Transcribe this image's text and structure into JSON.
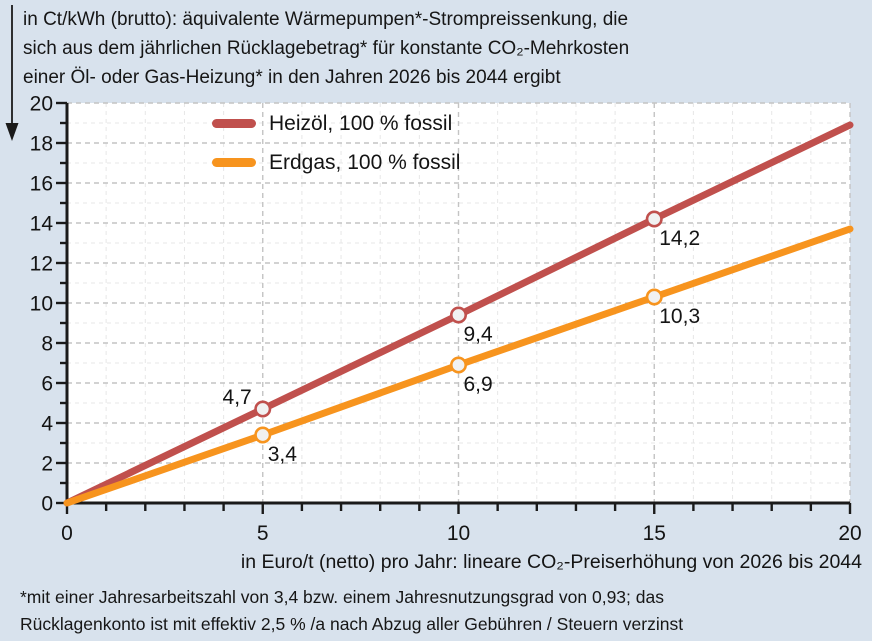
{
  "heading": {
    "lines": [
      "in Ct/kWh (brutto): äquivalente Wärmepumpen*-Strompreissenkung, die",
      "sich aus dem jährlichen Rücklagebetrag* für konstante CO₂-Mehrkosten",
      "einer Öl- oder Gas-Heizung* in den Jahren 2026 bis 2044 ergibt"
    ]
  },
  "legend": {
    "items": [
      {
        "label": "Heizöl, 100 % fossil",
        "color": "#c0504d"
      },
      {
        "label": "Erdgas, 100 % fossil",
        "color": "#f7941e"
      }
    ]
  },
  "footnote": {
    "lines": [
      "*mit einer Jahresarbeitszahl von 3,4 bzw. einem Jahresnutzungsgrad von 0,93; das",
      "Rücklagenkonto ist mit effektiv 2,5 % /a nach Abzug aller Gebühren / Steuern verzinst"
    ]
  },
  "chart_data": {
    "type": "line",
    "title": "in Ct/kWh (brutto): äquivalente Wärmepumpen*-Strompreissenkung, die sich aus dem jährlichen Rücklagebetrag* für konstante CO₂-Mehrkosten einer Öl- oder Gas-Heizung* in den Jahren 2026 bis 2044 ergibt",
    "xlabel": "in Euro/t (netto) pro Jahr: lineare CO₂-Preiserhöhung von 2026 bis 2044",
    "ylabel": "in Ct/kWh (brutto)",
    "xlim": [
      0,
      20
    ],
    "ylim": [
      0,
      20
    ],
    "x": [
      0,
      5,
      10,
      15,
      20
    ],
    "series": [
      {
        "name": "Heizöl, 100 % fossil",
        "color": "#c0504d",
        "values": [
          0,
          4.7,
          9.4,
          14.2,
          18.9
        ],
        "points": [
          {
            "x": 5,
            "y": 4.7,
            "label": "4,7",
            "align": "above-left"
          },
          {
            "x": 10,
            "y": 9.4,
            "label": "9,4",
            "align": "below-right"
          },
          {
            "x": 15,
            "y": 14.2,
            "label": "14,2",
            "align": "below-right"
          }
        ]
      },
      {
        "name": "Erdgas, 100 % fossil",
        "color": "#f7941e",
        "values": [
          0,
          3.4,
          6.9,
          10.3,
          13.7
        ],
        "points": [
          {
            "x": 5,
            "y": 3.4,
            "label": "3,4",
            "align": "below-right"
          },
          {
            "x": 10,
            "y": 6.9,
            "label": "6,9",
            "align": "below-right"
          },
          {
            "x": 15,
            "y": 10.3,
            "label": "10,3",
            "align": "below-right"
          }
        ]
      }
    ],
    "axes": {
      "y_tick_values": [
        0,
        2,
        4,
        6,
        8,
        10,
        12,
        14,
        16,
        18,
        20
      ],
      "x_tick_values": [
        0,
        5,
        10,
        15,
        20
      ],
      "minor_step": 1
    },
    "grid": {
      "on": true,
      "style": "dashed",
      "x_major_step": 5,
      "y_major_step": 2,
      "minor_step": 1
    },
    "legend_position": "top-left-inside",
    "marker": {
      "fill": "#f1f1f1"
    }
  },
  "colors": {
    "background": "#d8e2ed",
    "plot_background": "#ffffff",
    "grid_major": "#c4c4c4",
    "grid_minor": "#e7e7e7",
    "axis": "#1a1a1a"
  }
}
